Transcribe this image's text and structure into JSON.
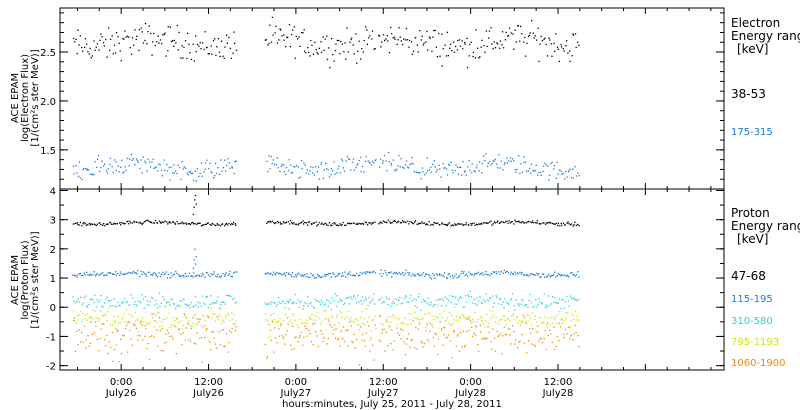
{
  "chart_data": [
    {
      "type": "scatter",
      "panel": "electron",
      "ylabel_lines": [
        "ACE EPAM",
        "log(Electron Flux)",
        "[1/(cm²s ster MeV)]"
      ],
      "yticks": [
        1.5,
        2.0,
        2.5
      ],
      "ylim": [
        1.1,
        2.95
      ],
      "legend_title": [
        "Electron",
        "Energy range",
        "[keV]"
      ],
      "series": [
        {
          "name": "38-53",
          "color": "#000000",
          "level": 2.6,
          "spread": 0.08
        },
        {
          "name": "175-315",
          "color": "#1e7ad6",
          "level": 1.33,
          "spread": 0.05
        }
      ]
    },
    {
      "type": "scatter",
      "panel": "proton",
      "ylabel_lines": [
        "ACE EPAM",
        "log(Proton Flux)",
        "[1/(cm²s ster MeV)]"
      ],
      "yticks": [
        -2,
        -1,
        0,
        1,
        2,
        3,
        4
      ],
      "ylim": [
        -2.15,
        4.05
      ],
      "legend_title": [
        "Proton",
        "Energy range",
        "[keV]"
      ],
      "series": [
        {
          "name": "47-68",
          "color": "#000000",
          "level": 2.9,
          "spread": 0.03
        },
        {
          "name": "115-195",
          "color": "#1e7ad6",
          "level": 1.15,
          "spread": 0.05
        },
        {
          "name": "310-580",
          "color": "#2ed3cf",
          "level": 0.22,
          "spread": 0.12
        },
        {
          "name": "795-1193",
          "color": "#c8e60f",
          "level": -0.38,
          "spread": 0.15
        },
        {
          "name": "1060-1900",
          "color": "#ee8a00",
          "level": -0.92,
          "spread": 0.32
        }
      ]
    }
  ],
  "xaxis": {
    "xlim": [
      -0.35,
      3.45
    ],
    "data_start": -0.28,
    "data_end": 2.62,
    "gaps": [
      [
        0.66,
        0.82
      ],
      [
        1.455,
        1.47
      ]
    ],
    "ticks": [
      {
        "x": 0.0,
        "time": "0:00",
        "date": "July26"
      },
      {
        "x": 0.5,
        "time": "12:00",
        "date": "July26"
      },
      {
        "x": 1.0,
        "time": "0:00",
        "date": "July27"
      },
      {
        "x": 1.5,
        "time": "12:00",
        "date": "July27"
      },
      {
        "x": 2.0,
        "time": "0:00",
        "date": "July28"
      },
      {
        "x": 2.5,
        "time": "12:00",
        "date": "July28"
      }
    ],
    "label": "hours:minutes, July 25, 2011 - July 28, 2011"
  }
}
